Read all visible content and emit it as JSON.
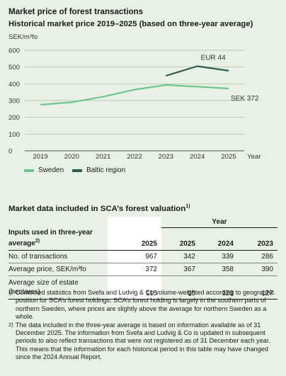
{
  "title": "Market price of forest transactions",
  "subtitle": "Historical market price 2019–2025 (based on three-year average)",
  "chart_data": {
    "type": "line",
    "ylabel": "SEK/m³fo",
    "xlabel": "Year",
    "x": [
      "2019",
      "2020",
      "2021",
      "2022",
      "2023",
      "2024",
      "2025"
    ],
    "ylim": [
      0,
      600
    ],
    "yticks": [
      0,
      100,
      200,
      300,
      400,
      500,
      600
    ],
    "grid": "horizontal",
    "legend_position": "bottom-left",
    "series": [
      {
        "name": "Sweden",
        "color": "#6cc78d",
        "values": [
          275,
          290,
          323,
          365,
          393,
          383,
          372
        ]
      },
      {
        "name": "Baltic region",
        "color": "#2f5c52",
        "values": [
          null,
          null,
          null,
          null,
          448,
          505,
          478
        ]
      }
    ],
    "annotations": [
      {
        "text": "EUR 44",
        "x": "2024",
        "y": 505
      },
      {
        "text": "SEK 372",
        "x": "2025",
        "y": 372
      }
    ]
  },
  "table": {
    "title": "Market data included in SCA’s forest valuation",
    "title_marker": "1)",
    "year_label": "Year",
    "row_header": "Inputs used in three-year",
    "row_header2": "average",
    "row_header_marker": "2)",
    "columns": [
      "2025",
      "2025",
      "2024",
      "2023"
    ],
    "rows": [
      {
        "label": "No. of transactions",
        "values": [
          "967",
          "342",
          "339",
          "286"
        ]
      },
      {
        "label": "Average price, SEK/m³fo",
        "values": [
          "372",
          "367",
          "358",
          "390"
        ]
      },
      {
        "label": "Average size of estate",
        "label2": "(hectares)",
        "values": [
          "115",
          "95",
          "123",
          "127"
        ]
      }
    ]
  },
  "footnotes": [
    {
      "mark": "1)",
      "text": "Combined statistics from Svefa and Ludvig & Co volume-weighted according to geographic position for SCA’s forest holdings. SCA’s forest holding is largely in the southern parts of northern Sweden, where prices are slightly above the average for northern Sweden as a whole."
    },
    {
      "mark": "2)",
      "text": "The data included in the three-year average is based on information available as of 31 December 2025. The information from Svefa and Ludvig & Co is updated in subsequent periods to also reflect transactions that were not registered as of 31 December each year. This means that the information for each historical period in this table may have changed since the 2024 Annual Report."
    }
  ]
}
